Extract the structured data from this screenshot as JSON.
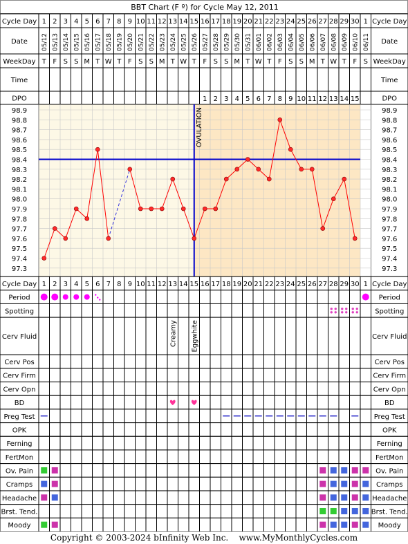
{
  "title": "BBT Chart (F º) for Cycle May 12, 2011",
  "footer": {
    "copyright": "Copyright © 2003-2024 bInfinity Web Inc.",
    "site": "www.MyMonthlyCycles.com"
  },
  "row_labels": {
    "cycle_day": "Cycle Day",
    "date": "Date",
    "weekday": "WeekDay",
    "time": "Time",
    "dpo": "DPO",
    "period": "Period",
    "spotting": "Spotting",
    "cerv_fluid": "Cerv Fluid",
    "cerv_pos": "Cerv Pos",
    "cerv_firm": "Cerv Firm",
    "cerv_opn": "Cerv Opn",
    "bd": "BD",
    "preg_test": "Preg Test",
    "opk": "OPK",
    "ferning": "Ferning",
    "fertmon": "FertMon",
    "ov_pain": "Ov. Pain",
    "cramps": "Cramps",
    "headache": "Headache",
    "brst_tend": "Brst. Tend.",
    "moody": "Moody"
  },
  "cycle_days": [
    "1",
    "2",
    "3",
    "4",
    "5",
    "6",
    "7",
    "8",
    "9",
    "10",
    "11",
    "12",
    "13",
    "14",
    "15",
    "16",
    "17",
    "18",
    "19",
    "20",
    "21",
    "22",
    "23",
    "24",
    "25",
    "26",
    "27",
    "28",
    "29",
    "30",
    "1"
  ],
  "dates": [
    "05/12",
    "05/13",
    "05/14",
    "05/15",
    "05/16",
    "05/17",
    "05/18",
    "05/19",
    "05/20",
    "05/21",
    "05/22",
    "05/23",
    "05/24",
    "05/25",
    "05/26",
    "05/27",
    "05/28",
    "05/29",
    "05/30",
    "05/31",
    "06/01",
    "06/02",
    "06/03",
    "06/04",
    "06/05",
    "06/06",
    "06/07",
    "06/08",
    "06/09",
    "06/10",
    "06/11"
  ],
  "weekdays": [
    "T",
    "F",
    "S",
    "S",
    "M",
    "T",
    "W",
    "T",
    "F",
    "S",
    "S",
    "M",
    "T",
    "W",
    "T",
    "F",
    "S",
    "S",
    "M",
    "T",
    "W",
    "T",
    "F",
    "S",
    "S",
    "M",
    "T",
    "W",
    "T",
    "F",
    "S"
  ],
  "dpo": [
    "",
    "",
    "",
    "",
    "",
    "",
    "",
    "",
    "",
    "",
    "",
    "",
    "",
    "",
    "",
    "1",
    "2",
    "3",
    "4",
    "5",
    "6",
    "7",
    "8",
    "9",
    "10",
    "11",
    "12",
    "13",
    "14",
    "15",
    ""
  ],
  "ovulation_label": "OVULATION",
  "cerv_fluid_marks": [
    "",
    "",
    "",
    "",
    "",
    "",
    "",
    "",
    "",
    "",
    "",
    "",
    "Creamy",
    "",
    "Eggwhite",
    "",
    "",
    "",
    "",
    "",
    "",
    "",
    "",
    "",
    "",
    "",
    "",
    "",
    "",
    "",
    ""
  ],
  "colors": {
    "line": "#ff0000",
    "point": "#ff2a2a",
    "coverline": "#0000cc",
    "ovulation_line": "#0000cc",
    "pre_ov_bg": "#fdf8e6",
    "post_ov_bg": "#fde7c4",
    "period": "#ff00ff",
    "spotting": "#e040c0",
    "heart": "#ff3399",
    "preg_test": "#3333cc",
    "green": "#33cc33",
    "magenta": "#cc33aa",
    "blue": "#4466dd"
  },
  "chart_data": {
    "type": "line",
    "title": "BBT Chart (F º) for Cycle May 12, 2011",
    "y_ticks": [
      "98.9",
      "98.8",
      "98.7",
      "98.6",
      "98.5",
      "98.4",
      "98.3",
      "98.2",
      "98.1",
      "98.0",
      "97.9",
      "97.8",
      "97.7",
      "97.6",
      "97.5",
      "97.4",
      "97.3"
    ],
    "ylim": [
      97.3,
      98.9
    ],
    "x": [
      "1",
      "2",
      "3",
      "4",
      "5",
      "6",
      "7",
      "8",
      "9",
      "10",
      "11",
      "12",
      "13",
      "14",
      "15",
      "16",
      "17",
      "18",
      "19",
      "20",
      "21",
      "22",
      "23",
      "24",
      "25",
      "26",
      "27",
      "28",
      "29",
      "30"
    ],
    "temperatures": [
      97.4,
      97.7,
      97.6,
      97.9,
      97.8,
      98.5,
      97.6,
      null,
      98.3,
      97.9,
      97.9,
      97.9,
      98.2,
      97.9,
      97.6,
      97.9,
      97.9,
      98.2,
      98.3,
      98.4,
      98.3,
      98.2,
      98.8,
      98.5,
      98.3,
      98.3,
      97.7,
      98.0,
      98.2,
      97.6
    ],
    "dashed_segment": {
      "from_day": 7,
      "to_day": 9
    },
    "coverline": 98.4,
    "ovulation_day": 15,
    "grid": true
  },
  "symbols": {
    "period": [
      "big",
      "big",
      "med",
      "med",
      "med",
      "dots",
      "",
      "",
      "",
      "",
      "",
      "",
      "",
      "",
      "",
      "",
      "",
      "",
      "",
      "",
      "",
      "",
      "",
      "",
      "",
      "",
      "",
      "",
      "",
      "",
      "big"
    ],
    "spotting_days": [
      28,
      29,
      30
    ],
    "bd_days": [
      13,
      15
    ],
    "preg_test_days": [
      1,
      18,
      19,
      20,
      21,
      22,
      23,
      24,
      25,
      26,
      27,
      28,
      30
    ],
    "ov_pain": {
      "1": "green",
      "2": "magenta",
      "27": "magenta",
      "28": "blue",
      "29": "blue",
      "30": "magenta",
      "31": "magenta"
    },
    "cramps": {
      "1": "blue",
      "2": "magenta",
      "27": "magenta",
      "28": "blue",
      "29": "blue",
      "30": "magenta",
      "31": "blue"
    },
    "headache": {
      "1": "magenta",
      "2": "blue",
      "27": "magenta",
      "28": "blue",
      "29": "blue",
      "30": "magenta",
      "31": "blue"
    },
    "brst_tend": {
      "27": "green",
      "28": "green",
      "29": "blue",
      "30": "blue",
      "31": "blue"
    },
    "moody": {
      "1": "green",
      "2": "magenta",
      "27": "magenta",
      "28": "blue",
      "29": "blue",
      "30": "magenta",
      "31": "blue"
    }
  }
}
